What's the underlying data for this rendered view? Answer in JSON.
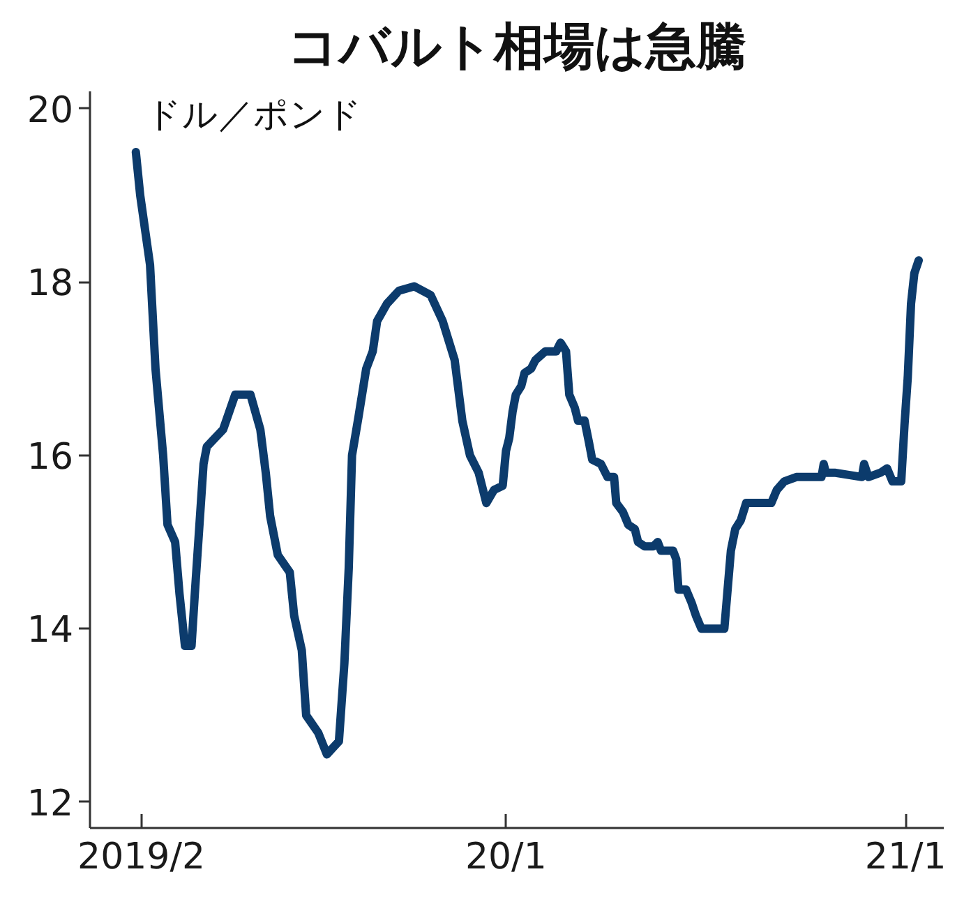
{
  "chart_data": {
    "type": "line",
    "title": "コバルト相場は急騰",
    "ylabel": "ドル／ポンド",
    "x": [
      "2019-01-27",
      "2019-01-31",
      "2019-02-09",
      "2019-02-14",
      "2019-02-21",
      "2019-02-25",
      "2019-03-04",
      "2019-03-08",
      "2019-03-13",
      "2019-03-19",
      "2019-03-22",
      "2019-03-30",
      "2019-04-02",
      "2019-04-17",
      "2019-04-28",
      "2019-05-12",
      "2019-05-21",
      "2019-05-26",
      "2019-05-30",
      "2019-06-06",
      "2019-06-17",
      "2019-06-21",
      "2019-06-28",
      "2019-07-02",
      "2019-07-13",
      "2019-07-21",
      "2019-08-01",
      "2019-08-06",
      "2019-08-10",
      "2019-08-13",
      "2019-08-19",
      "2019-08-26",
      "2019-09-01",
      "2019-09-05",
      "2019-09-14",
      "2019-09-25",
      "2019-10-09",
      "2019-10-24",
      "2019-11-04",
      "2019-11-15",
      "2019-11-22",
      "2019-11-29",
      "2019-12-07",
      "2019-12-14",
      "2019-12-21",
      "2019-12-29",
      "2020-01-01",
      "2020-01-04",
      "2020-01-07",
      "2020-01-10",
      "2020-01-15",
      "2020-01-18",
      "2020-01-24",
      "2020-01-28",
      "2020-02-06",
      "2020-02-16",
      "2020-02-20",
      "2020-02-25",
      "2020-02-28",
      "2020-03-04",
      "2020-03-07",
      "2020-03-13",
      "2020-03-17",
      "2020-03-20",
      "2020-03-28",
      "2020-04-03",
      "2020-04-09",
      "2020-04-11",
      "2020-04-17",
      "2020-04-22",
      "2020-04-28",
      "2020-05-01",
      "2020-05-07",
      "2020-05-15",
      "2020-05-19",
      "2020-05-22",
      "2020-06-02",
      "2020-06-05",
      "2020-06-07",
      "2020-06-14",
      "2020-06-19",
      "2020-06-23",
      "2020-06-28",
      "2020-07-19",
      "2020-07-22",
      "2020-07-25",
      "2020-07-29",
      "2020-08-03",
      "2020-08-08",
      "2020-08-31",
      "2020-09-05",
      "2020-09-12",
      "2020-09-23",
      "2020-10-16",
      "2020-10-18",
      "2020-10-20",
      "2020-10-28",
      "2020-11-22",
      "2020-11-24",
      "2020-11-28",
      "2020-12-09",
      "2020-12-15",
      "2020-12-20",
      "2020-12-28",
      "2020-12-31",
      "2021-01-03",
      "2021-01-06",
      "2021-01-09",
      "2021-01-13"
    ],
    "series": [
      {
        "color": "#0c3b6c",
        "values": [
          19.5,
          19.0,
          18.2,
          17.0,
          16.0,
          15.2,
          15.0,
          14.4,
          13.8,
          13.8,
          14.4,
          15.9,
          16.1,
          16.3,
          16.7,
          16.7,
          16.3,
          15.8,
          15.3,
          14.85,
          14.65,
          14.15,
          13.75,
          13.0,
          12.8,
          12.55,
          12.7,
          13.6,
          14.7,
          16.0,
          16.45,
          17.0,
          17.2,
          17.55,
          17.75,
          17.9,
          17.95,
          17.85,
          17.55,
          17.1,
          16.4,
          16.0,
          15.8,
          15.45,
          15.6,
          15.65,
          16.05,
          16.2,
          16.5,
          16.7,
          16.8,
          16.95,
          17.0,
          17.1,
          17.2,
          17.2,
          17.3,
          17.2,
          16.7,
          16.55,
          16.4,
          16.4,
          16.15,
          15.95,
          15.9,
          15.75,
          15.75,
          15.45,
          15.35,
          15.2,
          15.15,
          15.0,
          14.95,
          14.95,
          15.0,
          14.9,
          14.9,
          14.8,
          14.45,
          14.45,
          14.3,
          14.15,
          14.0,
          14.0,
          14.45,
          14.9,
          15.15,
          15.25,
          15.45,
          15.45,
          15.6,
          15.7,
          15.75,
          15.75,
          15.9,
          15.8,
          15.8,
          15.75,
          15.9,
          15.75,
          15.8,
          15.85,
          15.7,
          15.7,
          16.35,
          16.9,
          17.75,
          18.1,
          18.25
        ]
      }
    ],
    "xlim": [
      "2018-12-16",
      "2021-02-05"
    ],
    "xticks": [
      {
        "value": "2019-02",
        "label": "2019/2"
      },
      {
        "value": "2020-01",
        "label": "20/1"
      },
      {
        "value": "2021-01",
        "label": "21/1"
      }
    ],
    "ylim": [
      11.7,
      20.2
    ],
    "yticks": [
      12,
      14,
      16,
      18,
      20
    ],
    "line_style": "solid"
  }
}
